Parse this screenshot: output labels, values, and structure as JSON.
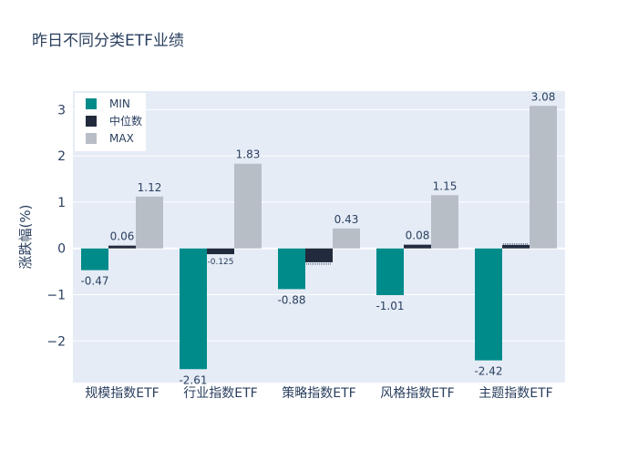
{
  "chart_data": {
    "type": "bar",
    "title": "昨日不同分类ETF业绩",
    "xlabel": "",
    "ylabel": "涨跌幅(%)",
    "ylim": [
      -2.9,
      3.4
    ],
    "yticks": [
      -2,
      -1,
      0,
      1,
      2,
      3
    ],
    "ytick_labels": [
      "−2",
      "−1",
      "0",
      "1",
      "2",
      "3"
    ],
    "grid": true,
    "legend_position": "top-left",
    "categories": [
      "规模指数ETF",
      "行业指数ETF",
      "策略指数ETF",
      "风格指数ETF",
      "主题指数ETF"
    ],
    "series": [
      {
        "name": "MIN",
        "color": "#008b8b",
        "values": [
          -0.47,
          -2.61,
          -0.88,
          -1.01,
          -2.42
        ],
        "labels": [
          "-0.47",
          "-2.61",
          "-0.88",
          "-1.01",
          "-2.42"
        ]
      },
      {
        "name": "中位数",
        "color": "#222a3d",
        "values": [
          0.06,
          -0.125,
          -0.3,
          0.08,
          0.075
        ],
        "labels": [
          "0.06",
          "-0.125",
          "",
          "0.08",
          ""
        ]
      },
      {
        "name": "MAX",
        "color": "#b8bec6",
        "values": [
          1.12,
          1.83,
          0.43,
          1.15,
          3.08
        ],
        "labels": [
          "1.12",
          "1.83",
          "0.43",
          "1.15",
          "3.08"
        ]
      }
    ]
  }
}
